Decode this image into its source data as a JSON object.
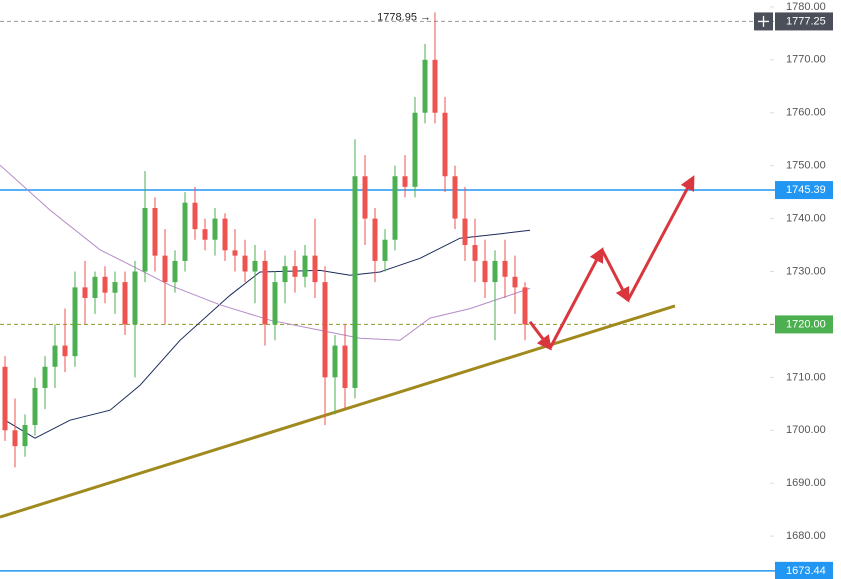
{
  "chart_data": {
    "type": "candlestick",
    "xlim": [
      0,
      77
    ],
    "ylim": [
      1671.9,
      1781.3
    ],
    "yticks": [
      {
        "value": 1680,
        "label": "1680.00"
      },
      {
        "value": 1690,
        "label": "1690.00"
      },
      {
        "value": 1700,
        "label": "1700.00"
      },
      {
        "value": 1710,
        "label": "1710.00"
      },
      {
        "value": 1720,
        "label": "1720.00"
      },
      {
        "value": 1730,
        "label": "1730.00"
      },
      {
        "value": 1740,
        "label": "1740.00"
      },
      {
        "value": 1750,
        "label": "1750.00"
      },
      {
        "value": 1760,
        "label": "1760.00"
      },
      {
        "value": 1770,
        "label": "1770.00"
      },
      {
        "value": 1780,
        "label": "1780.00"
      }
    ],
    "up_color": "#4caf50",
    "down_color": "#ef5350",
    "x": [
      0.5,
      1.5,
      2.5,
      3.5,
      4.5,
      5.5,
      6.5,
      7.5,
      8.5,
      9.5,
      10.5,
      11.5,
      12.5,
      13.5,
      14.5,
      15.5,
      16.5,
      17.5,
      18.5,
      19.5,
      20.5,
      21.5,
      22.5,
      23.5,
      24.5,
      25.5,
      26.5,
      27.5,
      28.5,
      29.5,
      30.5,
      31.5,
      32.5,
      33.5,
      34.5,
      35.5,
      36.5,
      37.5,
      38.5,
      39.5,
      40.5,
      41.5,
      42.5,
      43.5,
      44.5,
      45.5,
      46.5,
      47.5,
      48.5,
      49.5,
      50.5,
      51.5,
      52.5
    ],
    "open": [
      1712,
      1700,
      1697,
      1701,
      1708,
      1712,
      1716,
      1714,
      1727,
      1725,
      1729,
      1726,
      1728,
      1720,
      1730,
      1742,
      1733,
      1728,
      1732,
      1743,
      1738,
      1736,
      1740,
      1734,
      1733,
      1730,
      1732,
      1720,
      1728,
      1731,
      1729,
      1733,
      1728,
      1710,
      1716,
      1708,
      1748,
      1740,
      1732,
      1736,
      1748,
      1746,
      1760,
      1770,
      1760,
      1748,
      1740,
      1735,
      1732,
      1728,
      1732,
      1729,
      1727
    ],
    "high": [
      1714,
      1706,
      1703,
      1710,
      1714,
      1720,
      1723,
      1730,
      1732,
      1730,
      1731,
      1730,
      1730,
      1732,
      1749,
      1744,
      1738,
      1734,
      1745,
      1746,
      1740,
      1742,
      1741,
      1738,
      1736,
      1735,
      1734,
      1730,
      1733,
      1734,
      1735,
      1740,
      1731,
      1718,
      1720,
      1755,
      1752,
      1742,
      1738,
      1750,
      1752,
      1763,
      1773,
      1778.95,
      1763,
      1750,
      1746,
      1740,
      1736,
      1734,
      1736,
      1733,
      1728
    ],
    "low": [
      1698,
      1693,
      1695,
      1699,
      1704,
      1708,
      1711,
      1712,
      1720,
      1722,
      1724,
      1722,
      1718,
      1710,
      1728,
      1730,
      1720,
      1726,
      1730,
      1736,
      1734,
      1733,
      1732,
      1730,
      1728,
      1724,
      1716,
      1717,
      1724,
      1726,
      1727,
      1725,
      1701,
      1703,
      1704,
      1706,
      1735,
      1728,
      1730,
      1734,
      1744,
      1744,
      1758,
      1758,
      1745,
      1738,
      1732,
      1728,
      1725,
      1717,
      1725,
      1722,
      1717
    ],
    "close": [
      1700,
      1697,
      1701,
      1708,
      1712,
      1716,
      1714,
      1727,
      1725,
      1729,
      1726,
      1728,
      1720,
      1730,
      1742,
      1733,
      1728,
      1732,
      1743,
      1738,
      1736,
      1740,
      1734,
      1733,
      1730,
      1732,
      1720,
      1728,
      1731,
      1729,
      1733,
      1728,
      1710,
      1716,
      1708,
      1748,
      1740,
      1732,
      1736,
      1748,
      1746,
      1760,
      1770,
      1760,
      1748,
      1740,
      1735,
      1732,
      1728,
      1732,
      1729,
      1727,
      1720
    ],
    "high_label": {
      "value": 1778.95,
      "label": "1778.95 →",
      "x": 43.5
    },
    "lines": [
      {
        "color": "#1a2a5a",
        "x": [
          0.5,
          3.5,
          7,
          11,
          14,
          18,
          23,
          26,
          32,
          35,
          38,
          42,
          46,
          50,
          53
        ],
        "values": [
          1701.9,
          1698.5,
          1701.9,
          1703.8,
          1708.5,
          1717.0,
          1725.5,
          1729.9,
          1730.2,
          1729.3,
          1729.9,
          1732.5,
          1736.3,
          1737.1,
          1737.8
        ]
      },
      {
        "color": "#b58bc9",
        "x": [
          0,
          5,
          10,
          14,
          17,
          22,
          27,
          32,
          36,
          40,
          43,
          47,
          50,
          53
        ],
        "values": [
          1750.1,
          1741.6,
          1734.1,
          1730.3,
          1727.4,
          1723.7,
          1720.8,
          1718.9,
          1717.4,
          1717.0,
          1721.2,
          1723.0,
          1724.9,
          1726.8
        ]
      },
      {
        "color": "#a08a1e",
        "x": [
          0,
          67.5
        ],
        "values": [
          1683.6,
          1723.5
        ]
      }
    ],
    "arrows": {
      "color": "#d9363e",
      "x": [
        53,
        55,
        60.2,
        62.8,
        69.3
      ],
      "values": [
        1720.5,
        1715.5,
        1734.1,
        1724.6,
        1747.7
      ]
    },
    "price_lines": [
      {
        "value": 1777.25,
        "label": "1777.25",
        "color": "#4a4f5a",
        "dashed": true
      },
      {
        "value": 1745.39,
        "label": "1745.39",
        "color": "#2196f3",
        "dashed": false
      },
      {
        "value": 1720,
        "label": "1720.00",
        "color": "#4caf50",
        "dashed": true
      },
      {
        "value": 1673.44,
        "label": "1673.44",
        "color": "#2196f3",
        "dashed": false
      }
    ]
  }
}
